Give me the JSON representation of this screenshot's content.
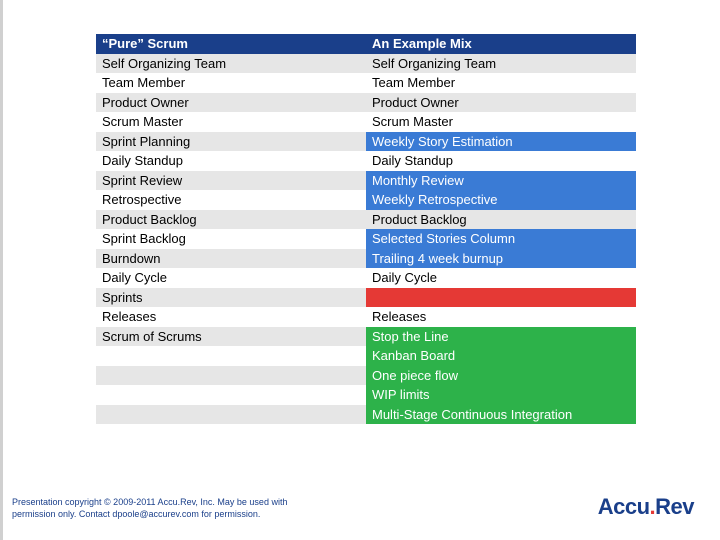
{
  "colors": {
    "header_bg": "#1a3f8a",
    "header_fg": "#ffffff",
    "neutral_light": "#e6e6e6",
    "neutral_white": "#ffffff",
    "blue_hl": "#3a7bd5",
    "red_hl": "#e53935",
    "green_hl": "#2db24a",
    "text": "#000000"
  },
  "table": {
    "header": {
      "left": "“Pure” Scrum",
      "right": "An Example Mix"
    },
    "rows": [
      {
        "left": "Self Organizing Team",
        "right": "Self Organizing Team",
        "l_bg": "neutral_light",
        "r_bg": "neutral_light"
      },
      {
        "left": "Team Member",
        "right": "Team Member",
        "l_bg": "neutral_white",
        "r_bg": "neutral_white"
      },
      {
        "left": "Product Owner",
        "right": "Product Owner",
        "l_bg": "neutral_light",
        "r_bg": "neutral_light"
      },
      {
        "left": "Scrum Master",
        "right": "Scrum Master",
        "l_bg": "neutral_white",
        "r_bg": "neutral_white"
      },
      {
        "left": "Sprint Planning",
        "right": "Weekly Story Estimation",
        "l_bg": "neutral_light",
        "r_bg": "blue_hl",
        "r_fg": "#ffffff"
      },
      {
        "left": "Daily Standup",
        "right": "Daily Standup",
        "l_bg": "neutral_white",
        "r_bg": "neutral_white"
      },
      {
        "left": "Sprint Review",
        "right": "Monthly Review",
        "l_bg": "neutral_light",
        "r_bg": "blue_hl",
        "r_fg": "#ffffff"
      },
      {
        "left": "Retrospective",
        "right": "Weekly Retrospective",
        "l_bg": "neutral_white",
        "r_bg": "blue_hl",
        "r_fg": "#ffffff"
      },
      {
        "left": "Product Backlog",
        "right": "Product Backlog",
        "l_bg": "neutral_light",
        "r_bg": "neutral_light"
      },
      {
        "left": "Sprint Backlog",
        "right": "Selected Stories Column",
        "l_bg": "neutral_white",
        "r_bg": "blue_hl",
        "r_fg": "#ffffff"
      },
      {
        "left": "Burndown",
        "right": "Trailing 4 week burnup",
        "l_bg": "neutral_light",
        "r_bg": "blue_hl",
        "r_fg": "#ffffff"
      },
      {
        "left": "Daily Cycle",
        "right": "Daily Cycle",
        "l_bg": "neutral_white",
        "r_bg": "neutral_white"
      },
      {
        "left": "Sprints",
        "right": "",
        "l_bg": "neutral_light",
        "r_bg": "red_hl"
      },
      {
        "left": "Releases",
        "right": "Releases",
        "l_bg": "neutral_white",
        "r_bg": "neutral_white"
      },
      {
        "left": "Scrum of Scrums",
        "right": "Stop the Line",
        "l_bg": "neutral_light",
        "r_bg": "green_hl",
        "r_fg": "#ffffff"
      },
      {
        "left": "",
        "right": "Kanban Board",
        "l_bg": "neutral_white",
        "r_bg": "green_hl",
        "r_fg": "#ffffff"
      },
      {
        "left": "",
        "right": "One piece flow",
        "l_bg": "neutral_light",
        "r_bg": "green_hl",
        "r_fg": "#ffffff"
      },
      {
        "left": "",
        "right": "WIP limits",
        "l_bg": "neutral_white",
        "r_bg": "green_hl",
        "r_fg": "#ffffff"
      },
      {
        "left": "",
        "right": "Multi-Stage Continuous Integration",
        "l_bg": "neutral_light",
        "r_bg": "green_hl",
        "r_fg": "#ffffff"
      }
    ]
  },
  "footer": {
    "line1": "Presentation copyright © 2009-2011 Accu.Rev, Inc. May be used with",
    "line2": "permission only. Contact dpoole@accurev.com for permission."
  },
  "logo": {
    "part1": "Accu",
    "dot": ".",
    "part2": "Rev"
  }
}
